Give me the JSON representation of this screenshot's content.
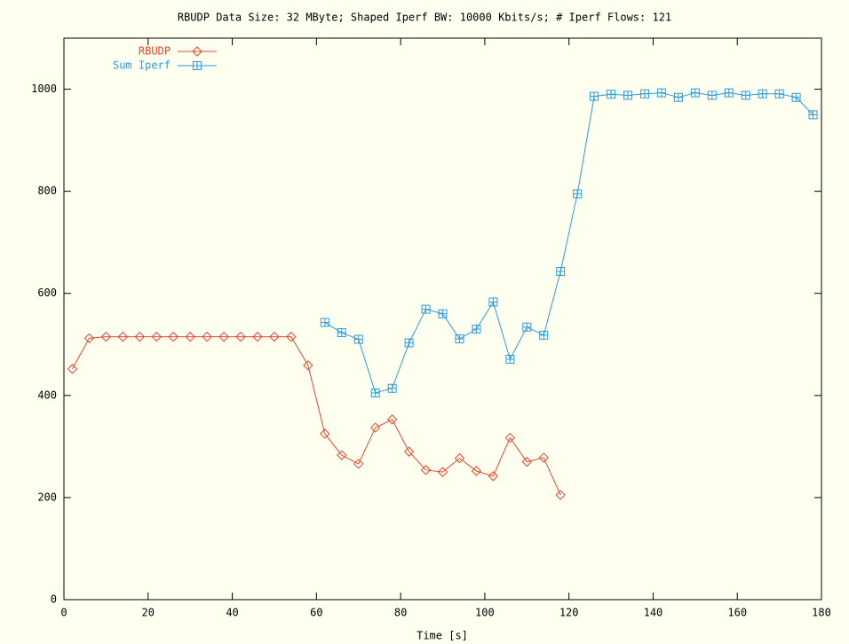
{
  "chart_data": {
    "type": "line",
    "title": "RBUDP Data Size: 32 MByte; Shaped Iperf BW: 10000 Kbits/s; # Iperf Flows: 121",
    "x_label": "Time [s]",
    "xlim": [
      0,
      180
    ],
    "xticks": [
      0,
      20,
      40,
      60,
      80,
      100,
      120,
      140,
      160,
      180
    ],
    "ylim": [
      0,
      1100
    ],
    "yticks": [
      0,
      200,
      400,
      600,
      800,
      1000
    ],
    "legend": "top-left",
    "series": [
      {
        "name": "RBUDP",
        "color": "#e8452c",
        "marker": "diamond",
        "x": [
          2,
          6,
          10,
          14,
          18,
          22,
          26,
          30,
          34,
          38,
          42,
          46,
          50,
          54,
          58,
          62,
          66,
          70,
          74,
          78,
          82,
          86,
          90,
          94,
          98,
          102,
          106,
          110,
          114,
          118
        ],
        "values": [
          452,
          512,
          515,
          515,
          515,
          515,
          515,
          515,
          515,
          515,
          515,
          515,
          515,
          515,
          459,
          325,
          283,
          266,
          337,
          353,
          290,
          254,
          250,
          277,
          252,
          242,
          317,
          270,
          278,
          205
        ]
      },
      {
        "name": "Sum Iperf",
        "color": "#2a9be0",
        "marker": "square",
        "x": [
          62,
          66,
          70,
          74,
          78,
          82,
          86,
          90,
          94,
          98,
          102,
          106,
          110,
          114,
          118,
          122,
          126,
          130,
          134,
          138,
          142,
          146,
          150,
          154,
          158,
          162,
          166,
          170,
          174,
          178
        ],
        "values": [
          543,
          523,
          510,
          405,
          414,
          503,
          569,
          560,
          511,
          530,
          583,
          471,
          534,
          518,
          643,
          795,
          986,
          990,
          988,
          991,
          993,
          984,
          993,
          988,
          993,
          988,
          991,
          991,
          984,
          950
        ]
      }
    ]
  }
}
